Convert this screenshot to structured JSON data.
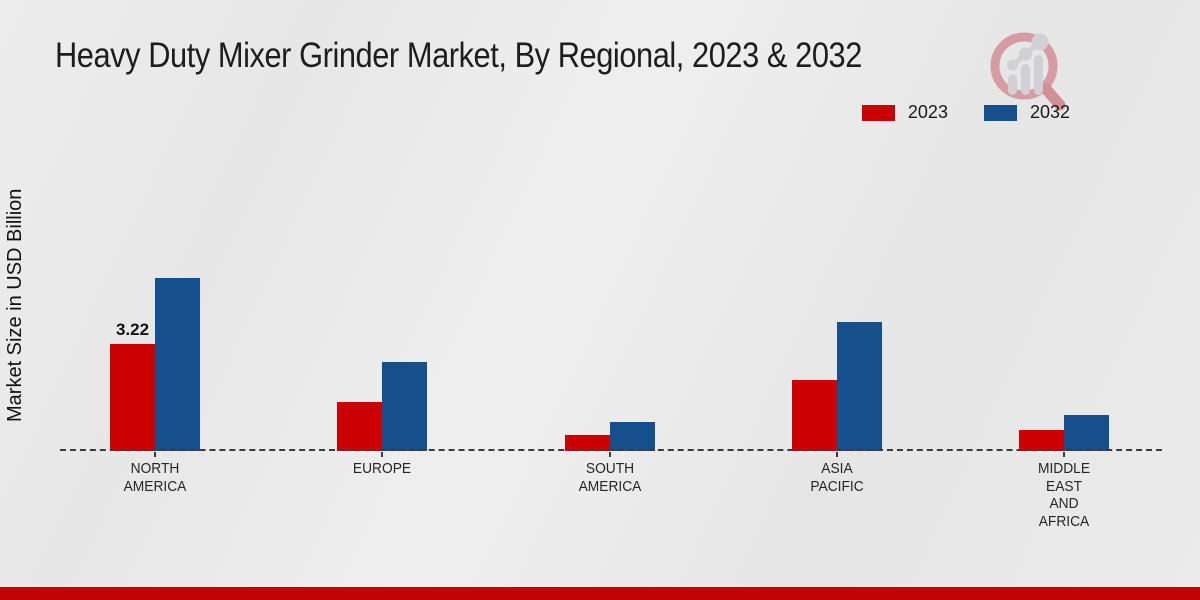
{
  "title": "Heavy Duty Mixer Grinder Market, By Regional, 2023 & 2032",
  "y_axis_label": "Market Size in USD Billion",
  "legend": [
    {
      "label": "2023",
      "color": "#cc0202"
    },
    {
      "label": "2032",
      "color": "#16508c"
    }
  ],
  "footer_bar_color": "#c00404",
  "colors": {
    "series_2023": "#cc0202",
    "series_2032": "#16508c",
    "baseline": "#3b3b3b",
    "background": "#e9e9e9",
    "title_text": "#1d1d1d"
  },
  "logo_name": "magnifier-bar-chart-logo",
  "chart_data": {
    "type": "bar",
    "title": "Heavy Duty Mixer Grinder Market, By Regional, 2023 & 2032",
    "xlabel": "",
    "ylabel": "Market Size in USD Billion",
    "categories": [
      "NORTH AMERICA",
      "EUROPE",
      "SOUTH AMERICA",
      "ASIA PACIFIC",
      "MIDDLE EAST AND AFRICA"
    ],
    "category_label_lines": [
      [
        "NORTH",
        "AMERICA"
      ],
      [
        "EUROPE"
      ],
      [
        "SOUTH",
        "AMERICA"
      ],
      [
        "ASIA",
        "PACIFIC"
      ],
      [
        "MIDDLE",
        "EAST",
        "AND",
        "AFRICA"
      ]
    ],
    "series": [
      {
        "name": "2023",
        "color": "#cc0202",
        "values": [
          3.22,
          1.47,
          0.48,
          2.14,
          0.63
        ]
      },
      {
        "name": "2032",
        "color": "#16508c",
        "values": [
          5.21,
          2.68,
          0.87,
          3.88,
          1.08
        ]
      }
    ],
    "data_labels": [
      {
        "series_index": 0,
        "category_index": 0,
        "text": "3.22"
      }
    ],
    "legend_position": "top-right",
    "grid": false,
    "y_axis_ticks_visible": false,
    "baseline_style": "dashed",
    "value_axis_note": "only the 3.22 label is printed; other values estimated from bar heights"
  }
}
